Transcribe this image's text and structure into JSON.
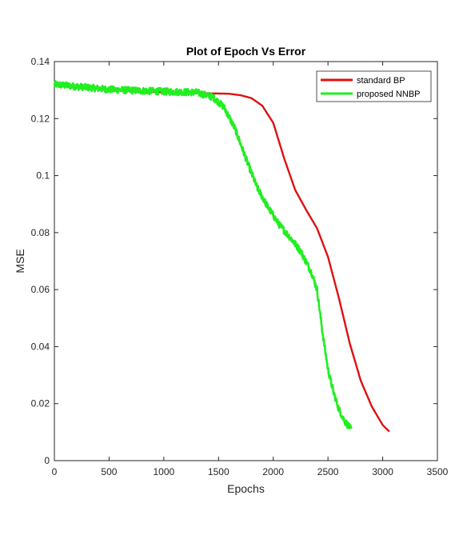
{
  "chart_data": {
    "type": "line",
    "title": "Plot of Epoch Vs Error",
    "xlabel": "Epochs",
    "ylabel": "MSE",
    "xlim": [
      0,
      3500
    ],
    "ylim": [
      0,
      0.14
    ],
    "xticks": [
      0,
      500,
      1000,
      1500,
      2000,
      2500,
      3000,
      3500
    ],
    "xtick_labels": [
      "0",
      "500",
      "1000",
      "1500",
      "2000",
      "2500",
      "3000",
      "3500"
    ],
    "yticks": [
      0,
      0.02,
      0.04,
      0.06,
      0.08,
      0.1,
      0.12,
      0.14
    ],
    "ytick_labels": [
      "0",
      "0.02",
      "0.04",
      "0.06",
      "0.08",
      "0.1",
      "0.12",
      "0.14"
    ],
    "grid": false,
    "legend_position": "top-right",
    "series": [
      {
        "name": "standard BP",
        "color": "#dd1111",
        "x": [
          0,
          500,
          1000,
          1300,
          1500,
          1600,
          1700,
          1800,
          1900,
          2000,
          2100,
          2200,
          2300,
          2400,
          2500,
          2600,
          2700,
          2800,
          2900,
          3000,
          3060
        ],
        "y": [
          0.132,
          0.13,
          0.1292,
          0.1289,
          0.1288,
          0.1287,
          0.1282,
          0.1272,
          0.1245,
          0.1185,
          0.106,
          0.095,
          0.088,
          0.0815,
          0.0715,
          0.057,
          0.041,
          0.028,
          0.019,
          0.0125,
          0.0102
        ]
      },
      {
        "name": "proposed NNBP",
        "color": "#22ee22",
        "noisy": true,
        "x": [
          0,
          500,
          1000,
          1300,
          1450,
          1550,
          1650,
          1750,
          1850,
          1950,
          2050,
          2150,
          2250,
          2350,
          2400,
          2450,
          2500,
          2550,
          2600,
          2650,
          2700,
          2720
        ],
        "y": [
          0.132,
          0.1302,
          0.1295,
          0.1292,
          0.1275,
          0.124,
          0.1165,
          0.106,
          0.096,
          0.089,
          0.083,
          0.0785,
          0.0735,
          0.066,
          0.06,
          0.045,
          0.032,
          0.024,
          0.018,
          0.014,
          0.0115,
          0.0105
        ]
      }
    ]
  }
}
